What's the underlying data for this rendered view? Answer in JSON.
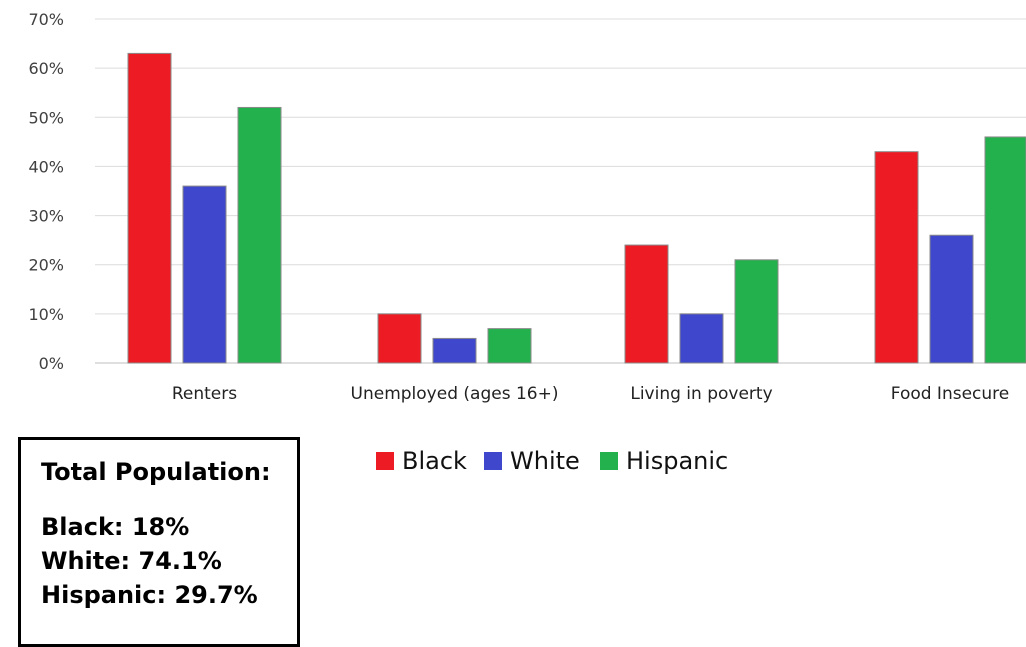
{
  "chart_data": {
    "type": "bar",
    "categories": [
      "Renters",
      "Unemployed (ages 16+)",
      "Living in poverty",
      "Food Insecure"
    ],
    "series": [
      {
        "name": "Black",
        "color": "#ed1c24",
        "values": [
          63,
          10,
          24,
          43
        ]
      },
      {
        "name": "White",
        "color": "#3f48cc",
        "values": [
          36,
          5,
          10,
          26
        ]
      },
      {
        "name": "Hispanic",
        "color": "#22b14c",
        "values": [
          52,
          7,
          21,
          46
        ]
      }
    ],
    "ylim": [
      0,
      70
    ],
    "yticks": [
      "0%",
      "10%",
      "20%",
      "30%",
      "40%",
      "50%",
      "60%",
      "70%"
    ],
    "grid": true,
    "legend_position": "bottom"
  },
  "population_box": {
    "title": "Total Population:",
    "lines": [
      "Black: 18%",
      "White: 74.1%",
      "Hispanic: 29.7%"
    ]
  }
}
